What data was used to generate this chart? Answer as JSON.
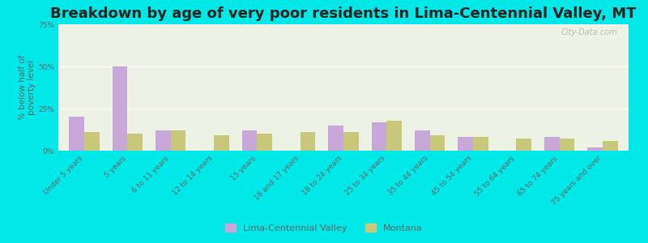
{
  "title": "Breakdown by age of very poor residents in Lima-Centennial Valley, MT",
  "ylabel": "% below half of\npoverty level",
  "categories": [
    "Under 5 years",
    "5 years",
    "6 to 11 years",
    "12 to 14 years",
    "15 years",
    "16 and 17 years",
    "18 to 24 years",
    "25 to 34 years",
    "35 to 44 years",
    "45 to 54 years",
    "55 to 64 years",
    "65 to 74 years",
    "75 years and over"
  ],
  "lima_values": [
    20,
    50,
    12,
    0,
    12,
    0,
    15,
    17,
    12,
    8,
    0,
    8,
    2
  ],
  "montana_values": [
    11,
    10,
    12,
    9,
    10,
    11,
    11,
    18,
    9,
    8,
    7,
    7,
    6
  ],
  "lima_color": "#c8a8d8",
  "montana_color": "#c8c87a",
  "background_color": "#00e8e8",
  "plot_bg": "#edf3e4",
  "ylim": [
    0,
    75
  ],
  "yticks": [
    0,
    25,
    50,
    75
  ],
  "ytick_labels": [
    "0%",
    "25%",
    "50%",
    "75%"
  ],
  "legend_lima": "Lima-Centennial Valley",
  "legend_montana": "Montana",
  "bar_width": 0.35,
  "title_fontsize": 13,
  "tick_fontsize": 6.5,
  "ylabel_fontsize": 7.5
}
